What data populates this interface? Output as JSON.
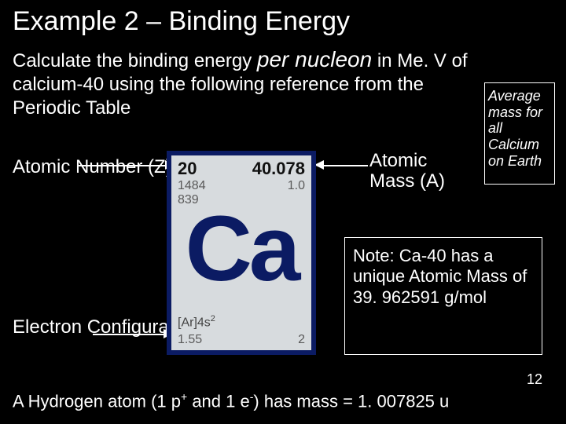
{
  "title": "Example 2 – Binding Energy",
  "prompt": {
    "prefix": "Calculate the binding energy ",
    "per_nucleon": "per nucleon",
    "suffix": " in Me. V of calcium-40  using the following reference from the Periodic Table"
  },
  "avg_label": "Average mass for all Calcium on Earth",
  "left_labels": {
    "atomic_number": "Atomic Number (Z)",
    "electron_config": "Electron Configuration"
  },
  "right_label": {
    "atomic_mass": "Atomic Mass (A)"
  },
  "element": {
    "z": "20",
    "mass": "40.078",
    "line1_left": "1484",
    "line1_right": "1.0",
    "line2_left": "839",
    "symbol": "Ca",
    "config_prefix": "[Ar]4s",
    "config_sup": "2",
    "bottom_left": "1.55",
    "bottom_right": "2",
    "colors": {
      "frame": "#0b1b63",
      "bg": "#d7dbde",
      "symbol": "#0b1b63",
      "text_dark": "#111111",
      "text_grey": "#5a5a5a"
    }
  },
  "note": "Note: Ca-40 has a unique Atomic Mass of 39. 962591 g/mol",
  "footnote": {
    "pre": "A Hydrogen atom (1 p",
    "sup1": "+",
    "mid": " and 1 e",
    "sup2": "-",
    "post": ") has mass = 1. 007825 u"
  },
  "page": "12",
  "colors": {
    "bg": "#000000",
    "text": "#ffffff",
    "border": "#ffffff"
  }
}
